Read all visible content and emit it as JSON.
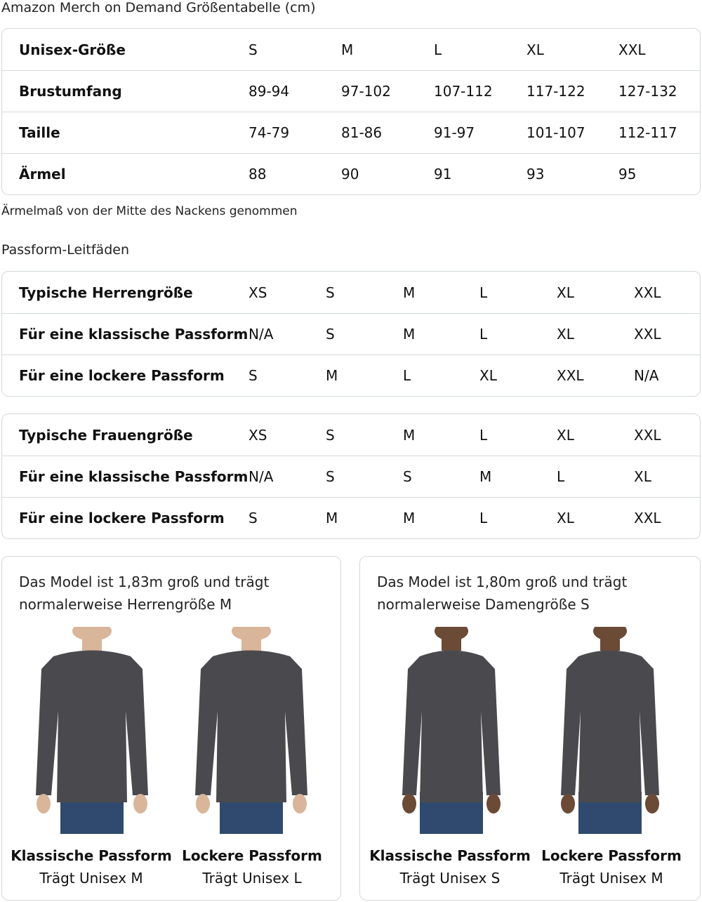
{
  "title": "Amazon Merch on Demand Größentabelle (cm)",
  "size_table": {
    "rows": [
      [
        "Unisex-Größe",
        "S",
        "M",
        "L",
        "XL",
        "XXL"
      ],
      [
        "Brustumfang",
        "89-94",
        "97-102",
        "107-112",
        "117-122",
        "127-132"
      ],
      [
        "Taille",
        "74-79",
        "81-86",
        "91-97",
        "101-107",
        "112-117"
      ],
      [
        "Ärmel",
        "88",
        "90",
        "91",
        "93",
        "95"
      ]
    ]
  },
  "note": "Ärmelmaß von der Mitte des Nackens genommen",
  "fit_title": "Passform-Leitfäden",
  "men_table": {
    "rows": [
      [
        "Typische Herrengröße",
        "XS",
        "S",
        "M",
        "L",
        "XL",
        "XXL"
      ],
      [
        "Für eine klassische Passform",
        "N/A",
        "S",
        "M",
        "L",
        "XL",
        "XXL"
      ],
      [
        "Für eine lockere Passform",
        "S",
        "M",
        "L",
        "XL",
        "XXL",
        "N/A"
      ]
    ]
  },
  "women_table": {
    "rows": [
      [
        "Typische Frauengröße",
        "XS",
        "S",
        "M",
        "L",
        "XL",
        "XXL"
      ],
      [
        "Für eine klassische Passform",
        "N/A",
        "S",
        "S",
        "M",
        "L",
        "XL"
      ],
      [
        "Für eine lockere Passform",
        "S",
        "M",
        "M",
        "L",
        "XL",
        "XXL"
      ]
    ]
  },
  "cards": [
    {
      "title": "Das Model ist 1,83m groß und trägt normalerweise Herrengröße M",
      "figures": [
        {
          "fit": "Klassische Passform",
          "wears": "Trägt Unisex M"
        },
        {
          "fit": "Lockere Passform",
          "wears": "Trägt Unisex L"
        }
      ]
    },
    {
      "title": "Das Model ist 1,80m groß und trägt normalerweise Damengröße S",
      "figures": [
        {
          "fit": "Klassische Passform",
          "wears": "Trägt Unisex S"
        },
        {
          "fit": "Lockere Passform",
          "wears": "Trägt Unisex M"
        }
      ]
    }
  ],
  "colors": {
    "shirt": "#4a4a4e",
    "border": "#d5d9d9",
    "jeans": "#2f4a6e"
  }
}
